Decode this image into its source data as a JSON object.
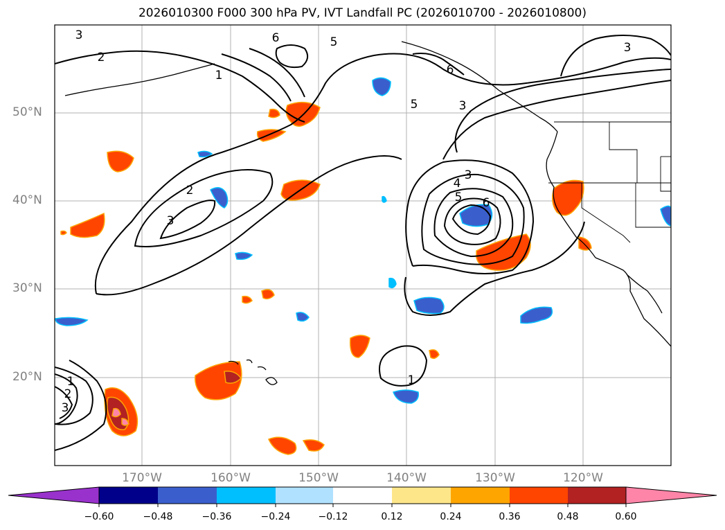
{
  "title": "2026010300 F000 300 hPa PV, IVT Landfall PC (2026010700 - 2026010800)",
  "map": {
    "lat_ticks": [
      {
        "label": "50°N",
        "lat": 50
      },
      {
        "label": "40°N",
        "lat": 40
      },
      {
        "label": "30°N",
        "lat": 30
      },
      {
        "label": "20°N",
        "lat": 20
      }
    ],
    "lon_ticks": [
      {
        "label": "170°W",
        "lon": -170
      },
      {
        "label": "160°W",
        "lon": -160
      },
      {
        "label": "150°W",
        "lon": -150
      },
      {
        "label": "140°W",
        "lon": -140
      },
      {
        "label": "130°W",
        "lon": -130
      },
      {
        "label": "120°W",
        "lon": -120
      }
    ],
    "contour_labels": [
      "3",
      "2",
      "1",
      "6",
      "5",
      "5",
      "6",
      "3",
      "3",
      "4",
      "5",
      "6",
      "2",
      "3",
      "1",
      "1",
      "2",
      "3",
      "3"
    ]
  },
  "colorbar": {
    "ticks": [
      "−0.60",
      "−0.48",
      "−0.36",
      "−0.24",
      "−0.12",
      "0.12",
      "0.24",
      "0.36",
      "0.48",
      "0.60"
    ],
    "colors": [
      "#9932cc",
      "#00008b",
      "#3a5fcd",
      "#00bfff",
      "#b0e2ff",
      "#ffffff",
      "#fde68a",
      "#ffa500",
      "#ff4500",
      "#b22222",
      "#ff85a8"
    ]
  }
}
